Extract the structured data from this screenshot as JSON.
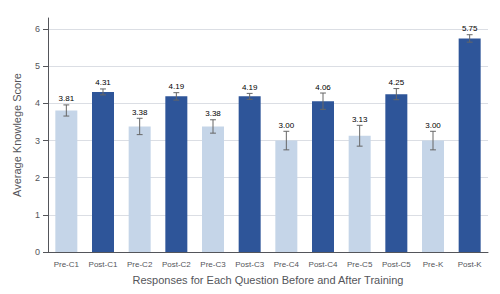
{
  "chart_data": {
    "type": "bar",
    "categories": [
      "Pre-C1",
      "Post-C1",
      "Pre-C2",
      "Post-C2",
      "Pre-C3",
      "Post-C3",
      "Pre-C4",
      "Post-C4",
      "Pre-C5",
      "Post-C5",
      "Pre-K",
      "Post-K"
    ],
    "values": [
      3.81,
      4.31,
      3.38,
      4.19,
      3.38,
      4.19,
      3.0,
      4.06,
      3.13,
      4.25,
      3.0,
      5.75
    ],
    "value_labels": [
      "3.81",
      "4.31",
      "3.38",
      "4.19",
      "3.38",
      "4.19",
      "3.00",
      "4.06",
      "3.13",
      "4.25",
      "3.00",
      "5.75"
    ],
    "data_labels": true,
    "errors": [
      0.15,
      0.08,
      0.22,
      0.1,
      0.18,
      0.08,
      0.25,
      0.22,
      0.28,
      0.15,
      0.25,
      0.1
    ],
    "colors": [
      "#c5d5e8",
      "#2e5599",
      "#c5d5e8",
      "#2e5599",
      "#c5d5e8",
      "#2e5599",
      "#c5d5e8",
      "#2e5599",
      "#c5d5e8",
      "#2e5599",
      "#c5d5e8",
      "#2e5599"
    ],
    "xlabel": "Responses for Each Question Before and After Training",
    "ylabel": "Average Knowlege Score",
    "ylim": [
      0,
      6.3
    ],
    "yticks": [
      0,
      1,
      2,
      3,
      4,
      5,
      6
    ],
    "grid": true
  }
}
